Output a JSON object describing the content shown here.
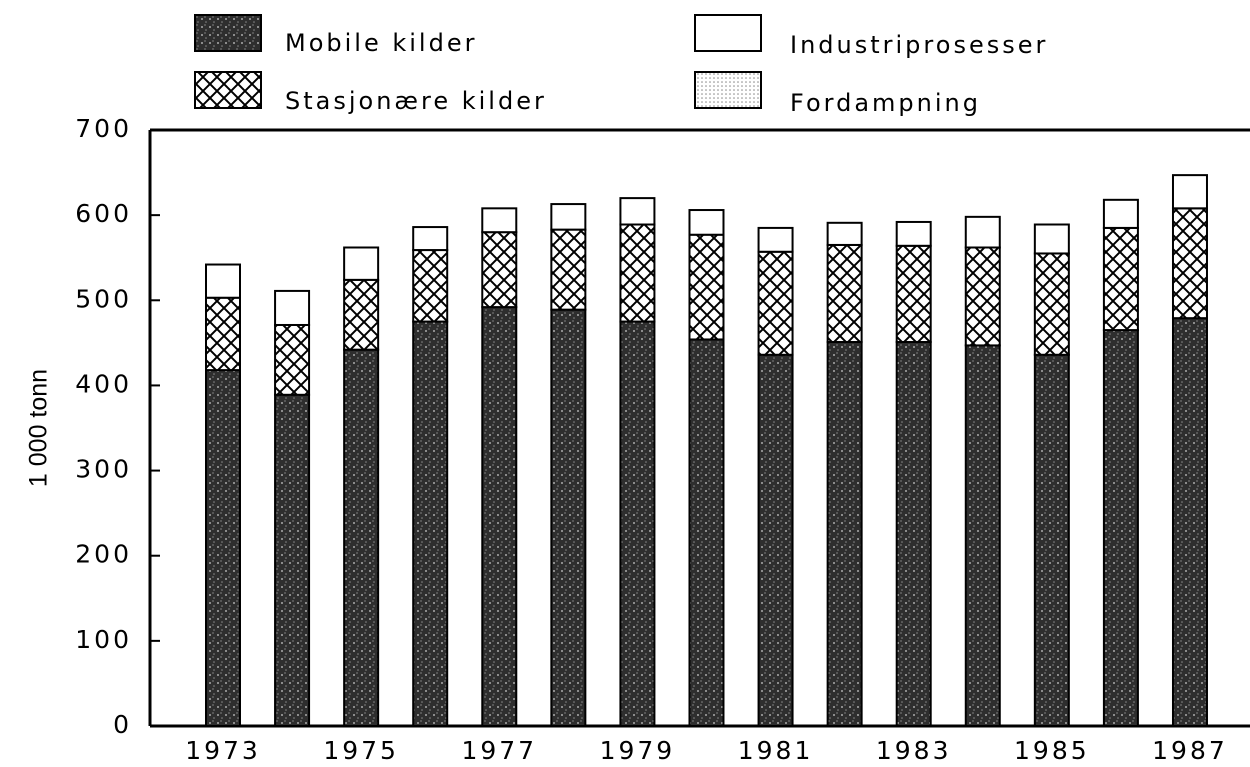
{
  "chart_data": {
    "type": "stacked_bar",
    "y_label": "1 000 tonn",
    "categories": [
      "1973",
      null,
      "1975",
      null,
      "1977",
      null,
      "1979",
      null,
      "1981",
      null,
      "1983",
      null,
      "1985",
      null,
      "1987"
    ],
    "series": [
      {
        "name": "Mobile kilder",
        "color": "#2e2e2e",
        "pattern": "speckle",
        "values": [
          418,
          389,
          442,
          475,
          492,
          489,
          475,
          454,
          436,
          451,
          451,
          447,
          436,
          465,
          479
        ]
      },
      {
        "name": "Stasjonære kilder",
        "color": "#000000",
        "pattern": "crosshatch",
        "values": [
          85,
          82,
          82,
          84,
          88,
          94,
          114,
          123,
          121,
          114,
          113,
          115,
          119,
          120,
          129
        ]
      },
      {
        "name": "Fordampning",
        "color": "#d8d8d8",
        "pattern": "dots",
        "values": [
          0,
          0,
          0,
          0,
          0,
          0,
          0,
          0,
          0,
          0,
          0,
          0,
          0,
          0,
          0
        ]
      },
      {
        "name": "Industriprosesser",
        "color": "#ffffff",
        "pattern": "none",
        "values": [
          39,
          40,
          38,
          27,
          28,
          30,
          31,
          29,
          28,
          26,
          28,
          36,
          34,
          33,
          39
        ]
      }
    ],
    "legend_order": [
      0,
      3,
      1,
      2
    ],
    "ylim": [
      0,
      700
    ],
    "yticks": [
      0,
      100,
      200,
      300,
      400,
      500,
      600,
      700
    ]
  }
}
